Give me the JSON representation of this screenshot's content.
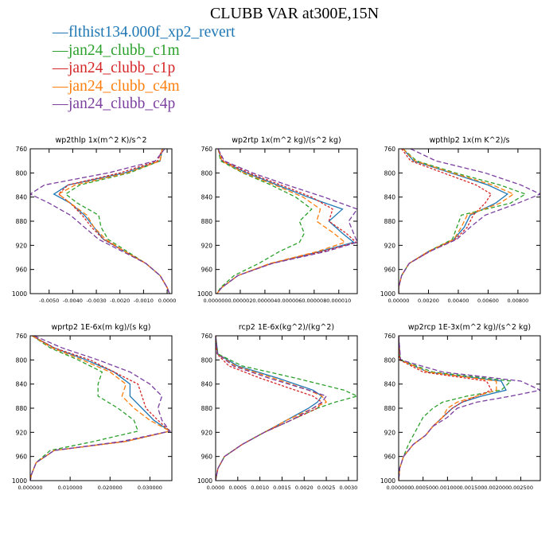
{
  "title": "CLUBB VAR at300E,15N",
  "legend": [
    {
      "label": "flthist134.000f_xp2_revert",
      "color": "#1f77b4"
    },
    {
      "label": "jan24_clubb_c1m",
      "color": "#2ca02c"
    },
    {
      "label": "jan24_clubb_c1p",
      "color": "#d62728"
    },
    {
      "label": "jan24_clubb_c4m",
      "color": "#ff7f0e"
    },
    {
      "label": "jan24_clubb_c4p",
      "color": "#7b3fa0"
    }
  ],
  "chart_data": [
    {
      "type": "line",
      "title": "wp2thlp  1x(m^2 K)/s^2",
      "xlim": [
        -0.0058,
        0.0002
      ],
      "ylim": [
        760,
        1000
      ],
      "xticks": [
        -0.005,
        -0.004,
        -0.003,
        -0.002,
        -0.001,
        0.0
      ],
      "xtick_labels": [
        "-0.0050",
        "-0.0040",
        "-0.0030",
        "-0.0020",
        "-0.0010",
        "0.0000"
      ],
      "yticks": [
        760,
        800,
        840,
        880,
        920,
        960,
        1000
      ],
      "y": [
        760,
        780,
        800,
        820,
        835,
        850,
        870,
        890,
        910,
        930,
        950,
        970,
        990,
        1000
      ],
      "series": [
        {
          "name": "flthist134.000f_xp2_revert",
          "values": [
            -0.0002,
            -0.0003,
            -0.0018,
            -0.0042,
            -0.0048,
            -0.0041,
            -0.0035,
            -0.0031,
            -0.0027,
            -0.0018,
            -0.0009,
            -0.0003,
            0.0,
            0.0001
          ]
        },
        {
          "name": "jan24_clubb_c1m",
          "values": [
            -0.0002,
            -0.0003,
            -0.0016,
            -0.0037,
            -0.0043,
            -0.0038,
            -0.0029,
            -0.0028,
            -0.0025,
            -0.0017,
            -0.0009,
            -0.0003,
            0.0,
            0.0001
          ]
        },
        {
          "name": "jan24_clubb_c1p",
          "values": [
            -0.0002,
            -0.0004,
            -0.002,
            -0.0042,
            -0.0046,
            -0.0041,
            -0.0036,
            -0.0032,
            -0.0027,
            -0.0018,
            -0.0009,
            -0.0003,
            0.0,
            0.0001
          ]
        },
        {
          "name": "jan24_clubb_c4m",
          "values": [
            -0.0002,
            -0.0003,
            -0.0017,
            -0.0039,
            -0.0046,
            -0.0041,
            -0.0034,
            -0.0031,
            -0.0026,
            -0.0018,
            -0.0009,
            -0.0003,
            0.0,
            0.0001
          ]
        },
        {
          "name": "jan24_clubb_c4p",
          "values": [
            -0.0001,
            -0.0005,
            -0.0025,
            -0.0052,
            -0.0058,
            -0.005,
            -0.0041,
            -0.0035,
            -0.0029,
            -0.0019,
            -0.0009,
            -0.0003,
            0.0,
            0.0001
          ]
        }
      ]
    },
    {
      "type": "line",
      "title": "wp2rtp  1x(m^2 kg)/(s^2 kg)",
      "xlim": [
        0.0,
        1.15e-05
      ],
      "ylim": [
        760,
        1000
      ],
      "xticks": [
        0.0,
        2e-06,
        4e-06,
        6e-06,
        8e-06,
        1e-05
      ],
      "xtick_labels": [
        "0.000000",
        "0.000002",
        "0.000004",
        "0.000006",
        "0.000008",
        "0.000010"
      ],
      "yticks": [
        760,
        800,
        840,
        880,
        920,
        960,
        1000
      ],
      "y": [
        760,
        780,
        800,
        820,
        840,
        860,
        880,
        900,
        915,
        930,
        950,
        970,
        990,
        1000
      ],
      "series": [
        {
          "name": "flthist134.000f_xp2_revert",
          "values": [
            2e-07,
            5e-07,
            2.5e-06,
            5e-06,
            7.5e-06,
            1.03e-05,
            9.2e-06,
            1.03e-05,
            1.12e-05,
            8.5e-06,
            4.5e-06,
            1.8e-06,
            5e-07,
            1e-07
          ]
        },
        {
          "name": "jan24_clubb_c1m",
          "values": [
            2e-07,
            4e-07,
            2.2e-06,
            4.5e-06,
            6.5e-06,
            7.8e-06,
            6.8e-06,
            7.2e-06,
            6.8e-06,
            5.2e-06,
            3.5e-06,
            1.5e-06,
            4e-07,
            1e-07
          ]
        },
        {
          "name": "jan24_clubb_c1p",
          "values": [
            2e-07,
            6e-07,
            2.7e-06,
            5.3e-06,
            7.8e-06,
            9.5e-06,
            9.2e-06,
            1.06e-05,
            1.14e-05,
            8.7e-06,
            4.5e-06,
            1.8e-06,
            5e-07,
            1e-07
          ]
        },
        {
          "name": "jan24_clubb_c4m",
          "values": [
            2e-07,
            5e-07,
            2.3e-06,
            4.8e-06,
            7.1e-06,
            8.5e-06,
            8.2e-06,
            9.6e-06,
            1.05e-05,
            8.3e-06,
            4.4e-06,
            1.8e-06,
            5e-07,
            1e-07
          ]
        },
        {
          "name": "jan24_clubb_c4p",
          "values": [
            2e-07,
            7e-07,
            3e-06,
            5.8e-06,
            8.8e-06,
            1.15e-05,
            1.08e-05,
            1.12e-05,
            1.15e-05,
            9e-06,
            4.6e-06,
            1.8e-06,
            5e-07,
            1e-07
          ]
        }
      ]
    },
    {
      "type": "line",
      "title": "wpthlp2  1x(m K^2)/s",
      "xlim": [
        0.0,
        0.0095
      ],
      "ylim": [
        760,
        1000
      ],
      "xticks": [
        0.0,
        0.002,
        0.004,
        0.006,
        0.008
      ],
      "xtick_labels": [
        "0.00000",
        "0.00200",
        "0.00400",
        "0.00600",
        "0.00800"
      ],
      "yticks": [
        760,
        800,
        840,
        880,
        920,
        960,
        1000
      ],
      "y": [
        760,
        780,
        800,
        820,
        835,
        850,
        870,
        890,
        910,
        930,
        950,
        970,
        990,
        1000
      ],
      "series": [
        {
          "name": "flthist134.000f_xp2_revert",
          "values": [
            0.0003,
            0.001,
            0.0035,
            0.006,
            0.0073,
            0.0065,
            0.0048,
            0.0044,
            0.0037,
            0.002,
            0.0007,
            0.0002,
            0.0,
            0.0
          ]
        },
        {
          "name": "jan24_clubb_c1m",
          "values": [
            0.0003,
            0.0012,
            0.0038,
            0.0068,
            0.0085,
            0.0075,
            0.0042,
            0.0039,
            0.0036,
            0.002,
            0.0007,
            0.0002,
            0.0,
            0.0
          ]
        },
        {
          "name": "jan24_clubb_c1p",
          "values": [
            0.0002,
            0.0008,
            0.003,
            0.0052,
            0.0062,
            0.0058,
            0.005,
            0.0046,
            0.0038,
            0.0021,
            0.0007,
            0.0002,
            0.0,
            0.0
          ]
        },
        {
          "name": "jan24_clubb_c4m",
          "values": [
            0.0003,
            0.0011,
            0.0036,
            0.0063,
            0.0077,
            0.0068,
            0.0046,
            0.0042,
            0.0037,
            0.002,
            0.0007,
            0.0002,
            0.0,
            0.0
          ]
        },
        {
          "name": "jan24_clubb_c4p",
          "values": [
            0.0008,
            0.0025,
            0.0058,
            0.0082,
            0.0095,
            0.008,
            0.0058,
            0.0048,
            0.0039,
            0.0021,
            0.0007,
            0.0002,
            0.0,
            0.0
          ]
        }
      ]
    },
    {
      "type": "line",
      "title": "wprtp2  1E-6x(m kg)/(s kg)",
      "xlim": [
        0.0,
        0.0355
      ],
      "ylim": [
        760,
        1000
      ],
      "xticks": [
        0.0,
        0.01,
        0.02,
        0.03
      ],
      "xtick_labels": [
        "0.000000",
        "0.010000",
        "0.020000",
        "0.030000"
      ],
      "yticks": [
        760,
        800,
        840,
        880,
        920,
        960,
        1000
      ],
      "y": [
        760,
        780,
        800,
        820,
        840,
        860,
        880,
        900,
        918,
        935,
        950,
        970,
        990,
        1000
      ],
      "series": [
        {
          "name": "flthist134.000f_xp2_revert",
          "values": [
            0.0005,
            0.006,
            0.014,
            0.021,
            0.025,
            0.025,
            0.028,
            0.031,
            0.035,
            0.024,
            0.006,
            0.0015,
            0.0003,
            0.0
          ]
        },
        {
          "name": "jan24_clubb_c1m",
          "values": [
            0.0005,
            0.005,
            0.012,
            0.018,
            0.017,
            0.017,
            0.022,
            0.026,
            0.027,
            0.016,
            0.005,
            0.0015,
            0.0003,
            0.0
          ]
        },
        {
          "name": "jan24_clubb_c1p",
          "values": [
            0.0005,
            0.006,
            0.015,
            0.021,
            0.027,
            0.028,
            0.029,
            0.032,
            0.035,
            0.024,
            0.006,
            0.0015,
            0.0003,
            0.0
          ]
        },
        {
          "name": "jan24_clubb_c4m",
          "values": [
            0.0005,
            0.0055,
            0.013,
            0.02,
            0.024,
            0.023,
            0.026,
            0.03,
            0.035,
            0.024,
            0.006,
            0.0015,
            0.0003,
            0.0
          ]
        },
        {
          "name": "jan24_clubb_c4p",
          "values": [
            0.001,
            0.008,
            0.017,
            0.025,
            0.03,
            0.033,
            0.032,
            0.033,
            0.035,
            0.023,
            0.006,
            0.0015,
            0.0003,
            0.0
          ]
        }
      ]
    },
    {
      "type": "line",
      "title": "rcp2  1E-6x(kg^2)/(kg^2)",
      "xlim": [
        0.0,
        0.0032
      ],
      "ylim": [
        760,
        1000
      ],
      "xticks": [
        0.0,
        0.0005,
        0.001,
        0.0015,
        0.002,
        0.0025,
        0.003
      ],
      "xtick_labels": [
        "0.0000",
        "0.0005",
        "0.0010",
        "0.0015",
        "0.0020",
        "0.0025",
        "0.0030"
      ],
      "yticks": [
        760,
        800,
        840,
        880,
        920,
        960,
        1000
      ],
      "y": [
        760,
        790,
        810,
        830,
        850,
        860,
        870,
        880,
        900,
        920,
        940,
        960,
        980,
        1000
      ],
      "series": [
        {
          "name": "flthist134.000f_xp2_revert",
          "values": [
            0.0,
            5e-05,
            0.0005,
            0.0014,
            0.0022,
            0.0024,
            0.0023,
            0.0021,
            0.0016,
            0.0011,
            0.0006,
            0.0002,
            5e-05,
            0.0
          ]
        },
        {
          "name": "jan24_clubb_c1m",
          "values": [
            0.0,
            5e-05,
            0.0006,
            0.0018,
            0.0029,
            0.0032,
            0.0027,
            0.0023,
            0.0017,
            0.0011,
            0.0006,
            0.0002,
            5e-05,
            0.0
          ]
        },
        {
          "name": "jan24_clubb_c1p",
          "values": [
            0.0,
            3e-05,
            0.0003,
            0.001,
            0.0018,
            0.0022,
            0.0024,
            0.0023,
            0.0017,
            0.0011,
            0.0006,
            0.0002,
            5e-05,
            0.0
          ]
        },
        {
          "name": "jan24_clubb_c4m",
          "values": [
            0.0,
            4e-05,
            0.00045,
            0.0013,
            0.0021,
            0.0024,
            0.0025,
            0.0022,
            0.0016,
            0.0011,
            0.0006,
            0.0002,
            5e-05,
            0.0
          ]
        },
        {
          "name": "jan24_clubb_c4p",
          "values": [
            0.0,
            4e-05,
            0.0004,
            0.0012,
            0.0021,
            0.0025,
            0.0024,
            0.0022,
            0.0017,
            0.0011,
            0.0006,
            0.0002,
            5e-05,
            0.0
          ]
        }
      ]
    },
    {
      "type": "line",
      "title": "wp2rcp  1E-3x(m^2 kg)/(s^2 kg)",
      "xlim": [
        0.0,
        0.0029
      ],
      "ylim": [
        760,
        1000
      ],
      "xticks": [
        0.0,
        0.0005,
        0.001,
        0.0015,
        0.002,
        0.0025
      ],
      "xtick_labels": [
        "0.000000",
        "0.000500",
        "0.001000",
        "0.001500",
        "0.002000",
        "0.002500"
      ],
      "yticks": [
        760,
        800,
        840,
        880,
        920,
        960,
        1000
      ],
      "y": [
        760,
        800,
        820,
        835,
        850,
        860,
        870,
        880,
        895,
        910,
        925,
        940,
        960,
        980,
        1000
      ],
      "series": [
        {
          "name": "flthist134.000f_xp2_revert",
          "values": [
            0.0,
            3e-05,
            0.0006,
            0.0021,
            0.0022,
            0.0017,
            0.0013,
            0.0011,
            0.0009,
            0.0007,
            0.00055,
            0.0003,
            0.0001,
            2e-05,
            0.0
          ]
        },
        {
          "name": "jan24_clubb_c1m",
          "values": [
            0.0,
            3e-05,
            0.0007,
            0.0023,
            0.0021,
            0.0014,
            0.0009,
            0.0007,
            0.0005,
            0.0004,
            0.0003,
            0.0002,
            0.0001,
            2e-05,
            0.0
          ]
        },
        {
          "name": "jan24_clubb_c1p",
          "values": [
            0.0,
            2e-05,
            0.0005,
            0.0018,
            0.0019,
            0.0016,
            0.0013,
            0.0011,
            0.0009,
            0.0007,
            0.00055,
            0.0003,
            0.0001,
            2e-05,
            0.0
          ]
        },
        {
          "name": "jan24_clubb_c4m",
          "values": [
            0.0,
            3e-05,
            0.0006,
            0.002,
            0.002,
            0.0016,
            0.0012,
            0.001,
            0.0009,
            0.0007,
            0.00055,
            0.0003,
            0.0001,
            2e-05,
            0.0
          ]
        },
        {
          "name": "jan24_clubb_c4p",
          "values": [
            0.0,
            4e-05,
            0.0009,
            0.0025,
            0.0029,
            0.0023,
            0.0016,
            0.0012,
            0.001,
            0.0007,
            0.00055,
            0.0003,
            0.0001,
            2e-05,
            0.0
          ]
        }
      ]
    }
  ]
}
